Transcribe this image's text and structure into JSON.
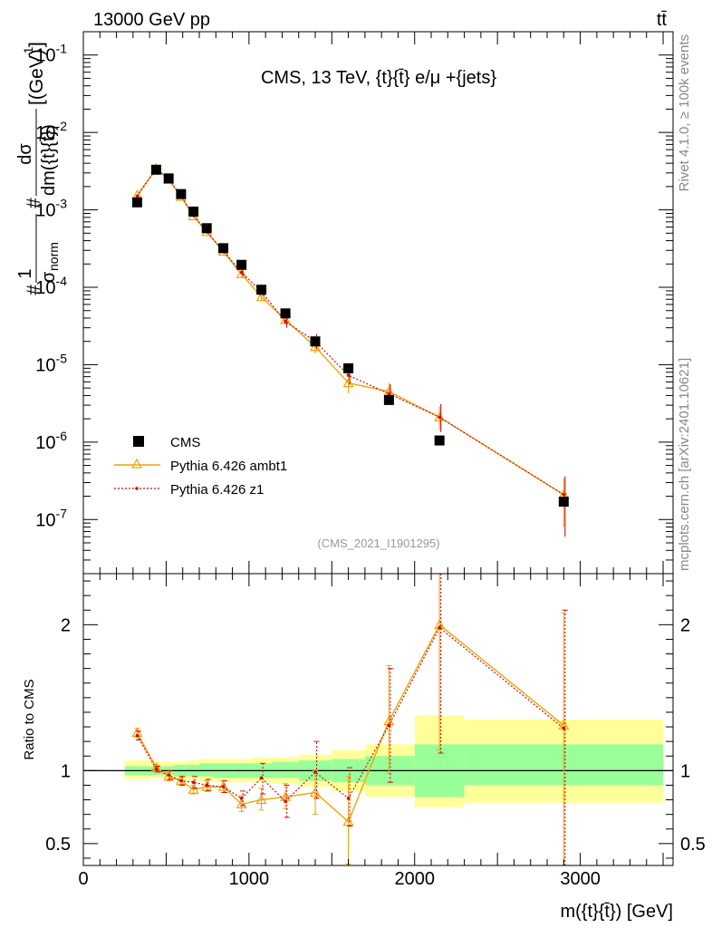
{
  "header": {
    "left_label": "13000 GeV pp",
    "right_label": "tt̄"
  },
  "plot_title": "CMS, 13 TeV, {t}{t̄} e/μ +{jets}",
  "side_labels": {
    "rivet": "Rivet 4.1.0, ≥ 100k events",
    "mcplots": "mcplots.cern.ch [arXiv:2401.10621]"
  },
  "analysis_ref": "(CMS_2021_I1901295)",
  "colors": {
    "data": "#000000",
    "ambt1": "#f0a30a",
    "z1": "#cc1010",
    "band_outer": "#ffff99",
    "band_inner": "#99ff99"
  },
  "chart_data": [
    {
      "type": "scatter",
      "panel": "main",
      "title": "CMS, 13 TeV, {t}{t̄} e/μ +{jets}",
      "ylabel_parts": {
        "hash1": "#",
        "one": "1",
        "sigma_norm": "σ",
        "norm_sub": "norm",
        "hash2": "#",
        "dsigma": "dσ",
        "dm": "dm({t}{t̄})",
        "units": "[(GeV)",
        "units_exp": "-1",
        "units_close": "]"
      },
      "yscale": "log",
      "ylim": [
        2e-08,
        0.2
      ],
      "xlim": [
        0,
        3560
      ],
      "ytick_labels": [
        {
          "value": 1e-07,
          "base": "10",
          "exp": "-7"
        },
        {
          "value": 1e-06,
          "base": "10",
          "exp": "-6"
        },
        {
          "value": 1e-05,
          "base": "10",
          "exp": "-5"
        },
        {
          "value": 0.0001,
          "base": "10",
          "exp": "-4"
        },
        {
          "value": 0.001,
          "base": "10",
          "exp": "-3"
        },
        {
          "value": 0.01,
          "base": "10",
          "exp": "-2"
        },
        {
          "value": 0.1,
          "base": "10",
          "exp": "-1"
        }
      ],
      "legend": {
        "position": "lower-left",
        "entries": [
          "CMS",
          "Pythia 6.426 ambt1",
          "Pythia 6.426 z1"
        ]
      },
      "x": [
        325,
        440,
        515,
        590,
        665,
        745,
        845,
        955,
        1075,
        1220,
        1400,
        1600,
        1845,
        2150,
        2900
      ],
      "series": [
        {
          "name": "CMS",
          "style": "square-marker",
          "values": [
            0.00125,
            0.0033,
            0.00255,
            0.0016,
            0.00095,
            0.00058,
            0.00032,
            0.000195,
            9.3e-05,
            4.6e-05,
            2e-05,
            9e-06,
            3.5e-06,
            1.05e-06,
            1.7e-07
          ]
        },
        {
          "name": "Pythia 6.426 ambt1",
          "style": "line-triangle",
          "values": [
            0.00155,
            0.0034,
            0.00245,
            0.00148,
            0.00083,
            0.00052,
            0.00029,
            0.000148,
            7.5e-05,
            3.8e-05,
            1.7e-05,
            5.8e-06,
            4.5e-06,
            2.1e-06,
            2.1e-07
          ],
          "err_low": [
            0.0015,
            0.0033,
            0.00238,
            0.00142,
            0.00078,
            0.00049,
            0.00027,
            0.000135,
            6.7e-05,
            3.3e-05,
            1.4e-05,
            4.3e-06,
            3.4e-06,
            1.45e-06,
            8e-08
          ],
          "err_high": [
            0.0016,
            0.0035,
            0.00252,
            0.00154,
            0.00088,
            0.00055,
            0.00031,
            0.00016,
            8.3e-05,
            4.3e-05,
            2e-05,
            7.2e-06,
            5.8e-06,
            2.9e-06,
            3.4e-07
          ]
        },
        {
          "name": "Pythia 6.426 z1",
          "style": "dotted-dot",
          "values": [
            0.0015,
            0.0034,
            0.0025,
            0.0015,
            0.00085,
            0.00052,
            0.000295,
            0.000155,
            8.8e-05,
            3.6e-05,
            2e-05,
            7.3e-06,
            4.2e-06,
            2.1e-06,
            2.1e-07
          ],
          "err_low": [
            0.00145,
            0.0033,
            0.00242,
            0.00143,
            0.0008,
            0.00049,
            0.000275,
            0.00014,
            7.8e-05,
            3e-05,
            1.6e-05,
            5.5e-06,
            3.1e-06,
            1.35e-06,
            6e-08
          ],
          "err_high": [
            0.00155,
            0.0035,
            0.00258,
            0.00157,
            0.0009,
            0.00055,
            0.000315,
            0.00017,
            9.8e-05,
            4.3e-05,
            2.5e-05,
            9.5e-06,
            5.6e-06,
            3.1e-06,
            3.6e-07
          ]
        }
      ]
    },
    {
      "type": "line",
      "panel": "ratio",
      "ylabel": "Ratio to CMS",
      "xlabel": "m({t}{t̄}) [GeV]",
      "ylim": [
        0.35,
        2.35
      ],
      "xlim": [
        0,
        3560
      ],
      "x_ticks": [
        0,
        1000,
        2000,
        3000
      ],
      "x_tick_labels": [
        "0",
        "1000",
        "2000",
        "3000"
      ],
      "y_ticks": [
        0.5,
        1,
        2
      ],
      "y_tick_labels": [
        "0.5",
        "1",
        "2"
      ],
      "uncertainty_bands": {
        "bins": [
          [
            250,
            400
          ],
          [
            400,
            480
          ],
          [
            480,
            550
          ],
          [
            550,
            630
          ],
          [
            630,
            700
          ],
          [
            700,
            790
          ],
          [
            790,
            900
          ],
          [
            900,
            1010
          ],
          [
            1010,
            1140
          ],
          [
            1140,
            1300
          ],
          [
            1300,
            1500
          ],
          [
            1500,
            1700
          ],
          [
            1700,
            2000
          ],
          [
            2000,
            2300
          ],
          [
            2300,
            3500
          ]
        ],
        "outer": [
          [
            0.94,
            1.07
          ],
          [
            0.95,
            1.06
          ],
          [
            0.95,
            1.06
          ],
          [
            0.94,
            1.06
          ],
          [
            0.93,
            1.07
          ],
          [
            0.93,
            1.08
          ],
          [
            0.92,
            1.08
          ],
          [
            0.92,
            1.08
          ],
          [
            0.92,
            1.09
          ],
          [
            0.91,
            1.09
          ],
          [
            0.89,
            1.11
          ],
          [
            0.86,
            1.14
          ],
          [
            0.82,
            1.18
          ],
          [
            0.75,
            1.38
          ],
          [
            0.78,
            1.35
          ]
        ],
        "inner": [
          [
            0.97,
            1.03
          ],
          [
            0.97,
            1.03
          ],
          [
            0.97,
            1.03
          ],
          [
            0.96,
            1.04
          ],
          [
            0.96,
            1.04
          ],
          [
            0.96,
            1.05
          ],
          [
            0.95,
            1.05
          ],
          [
            0.95,
            1.05
          ],
          [
            0.95,
            1.05
          ],
          [
            0.95,
            1.06
          ],
          [
            0.93,
            1.07
          ],
          [
            0.92,
            1.08
          ],
          [
            0.9,
            1.1
          ],
          [
            0.82,
            1.18
          ],
          [
            0.9,
            1.18
          ]
        ]
      },
      "x": [
        325,
        440,
        515,
        590,
        665,
        745,
        845,
        955,
        1075,
        1220,
        1400,
        1600,
        1845,
        2150,
        2900
      ],
      "series": [
        {
          "name": "Pythia 6.426 ambt1",
          "style": "line-triangle",
          "values": [
            1.26,
            1.02,
            0.96,
            0.93,
            0.87,
            0.89,
            0.89,
            0.77,
            0.8,
            0.82,
            0.85,
            0.65,
            1.34,
            2.0,
            1.31
          ],
          "err_low": [
            1.23,
            1.0,
            0.93,
            0.9,
            0.84,
            0.86,
            0.85,
            0.72,
            0.73,
            0.74,
            0.7,
            0.36,
            0.98,
            1.14,
            0.3
          ],
          "err_high": [
            1.29,
            1.04,
            0.99,
            0.96,
            0.9,
            0.93,
            0.93,
            0.83,
            0.88,
            0.91,
            1.0,
            0.96,
            1.72,
            2.35,
            2.08
          ]
        },
        {
          "name": "Pythia 6.426 z1",
          "style": "dotted-dot",
          "values": [
            1.24,
            1.01,
            0.97,
            0.93,
            0.92,
            0.9,
            0.89,
            0.81,
            0.95,
            0.79,
            0.99,
            0.81,
            1.31,
            1.98,
            1.29
          ],
          "err_low": [
            1.21,
            0.99,
            0.94,
            0.9,
            0.88,
            0.86,
            0.85,
            0.76,
            0.84,
            0.68,
            0.81,
            0.62,
            0.92,
            1.12,
            0.3
          ],
          "err_high": [
            1.27,
            1.03,
            1.0,
            0.96,
            0.96,
            0.94,
            0.93,
            0.86,
            1.05,
            0.9,
            1.2,
            1.02,
            1.7,
            2.35,
            2.1
          ]
        }
      ]
    }
  ]
}
